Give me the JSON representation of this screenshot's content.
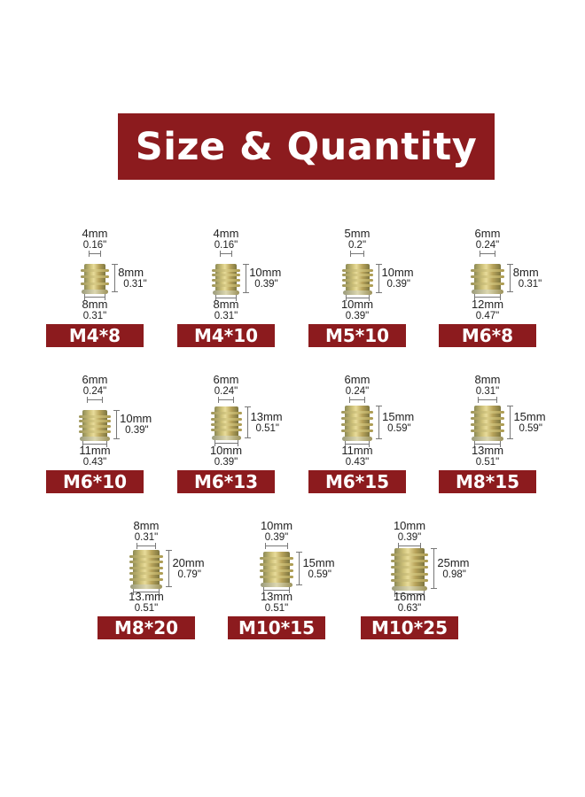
{
  "title": "Size & Quantity",
  "accent_color": "#8c1b1e",
  "items": [
    {
      "label": "M4*8",
      "top_mm": "4mm",
      "top_in": "0.16\"",
      "height_mm": "8mm",
      "height_in": "0.31\"",
      "bottom_mm": "8mm",
      "bottom_in": "0.31\""
    },
    {
      "label": "M4*10",
      "top_mm": "4mm",
      "top_in": "0.16\"",
      "height_mm": "10mm",
      "height_in": "0.39\"",
      "bottom_mm": "8mm",
      "bottom_in": "0.31\""
    },
    {
      "label": "M5*10",
      "top_mm": "5mm",
      "top_in": "0.2\"",
      "height_mm": "10mm",
      "height_in": "0.39\"",
      "bottom_mm": "10mm",
      "bottom_in": "0.39\""
    },
    {
      "label": "M6*8",
      "top_mm": "6mm",
      "top_in": "0.24\"",
      "height_mm": "8mm",
      "height_in": "0.31\"",
      "bottom_mm": "12mm",
      "bottom_in": "0.47\""
    },
    {
      "label": "M6*10",
      "top_mm": "6mm",
      "top_in": "0.24\"",
      "height_mm": "10mm",
      "height_in": "0.39\"",
      "bottom_mm": "11mm",
      "bottom_in": "0.43\""
    },
    {
      "label": "M6*13",
      "top_mm": "6mm",
      "top_in": "0.24\"",
      "height_mm": "13mm",
      "height_in": "0.51\"",
      "bottom_mm": "10mm",
      "bottom_in": "0.39\""
    },
    {
      "label": "M6*15",
      "top_mm": "6mm",
      "top_in": "0.24\"",
      "height_mm": "15mm",
      "height_in": "0.59\"",
      "bottom_mm": "11mm",
      "bottom_in": "0.43\""
    },
    {
      "label": "M8*15",
      "top_mm": "8mm",
      "top_in": "0.31\"",
      "height_mm": "15mm",
      "height_in": "0.59\"",
      "bottom_mm": "13mm",
      "bottom_in": "0.51\""
    },
    {
      "label": "M8*20",
      "top_mm": "8mm",
      "top_in": "0.31\"",
      "height_mm": "20mm",
      "height_in": "0.79\"",
      "bottom_mm": "13.mm",
      "bottom_in": "0.51\""
    },
    {
      "label": "M10*15",
      "top_mm": "10mm",
      "top_in": "0.39\"",
      "height_mm": "15mm",
      "height_in": "0.59\"",
      "bottom_mm": "13mm",
      "bottom_in": "0.51\""
    },
    {
      "label": "M10*25",
      "top_mm": "10mm",
      "top_in": "0.39\"",
      "height_mm": "25mm",
      "height_in": "0.98\"",
      "bottom_mm": "16mm",
      "bottom_in": "0.63\""
    }
  ]
}
